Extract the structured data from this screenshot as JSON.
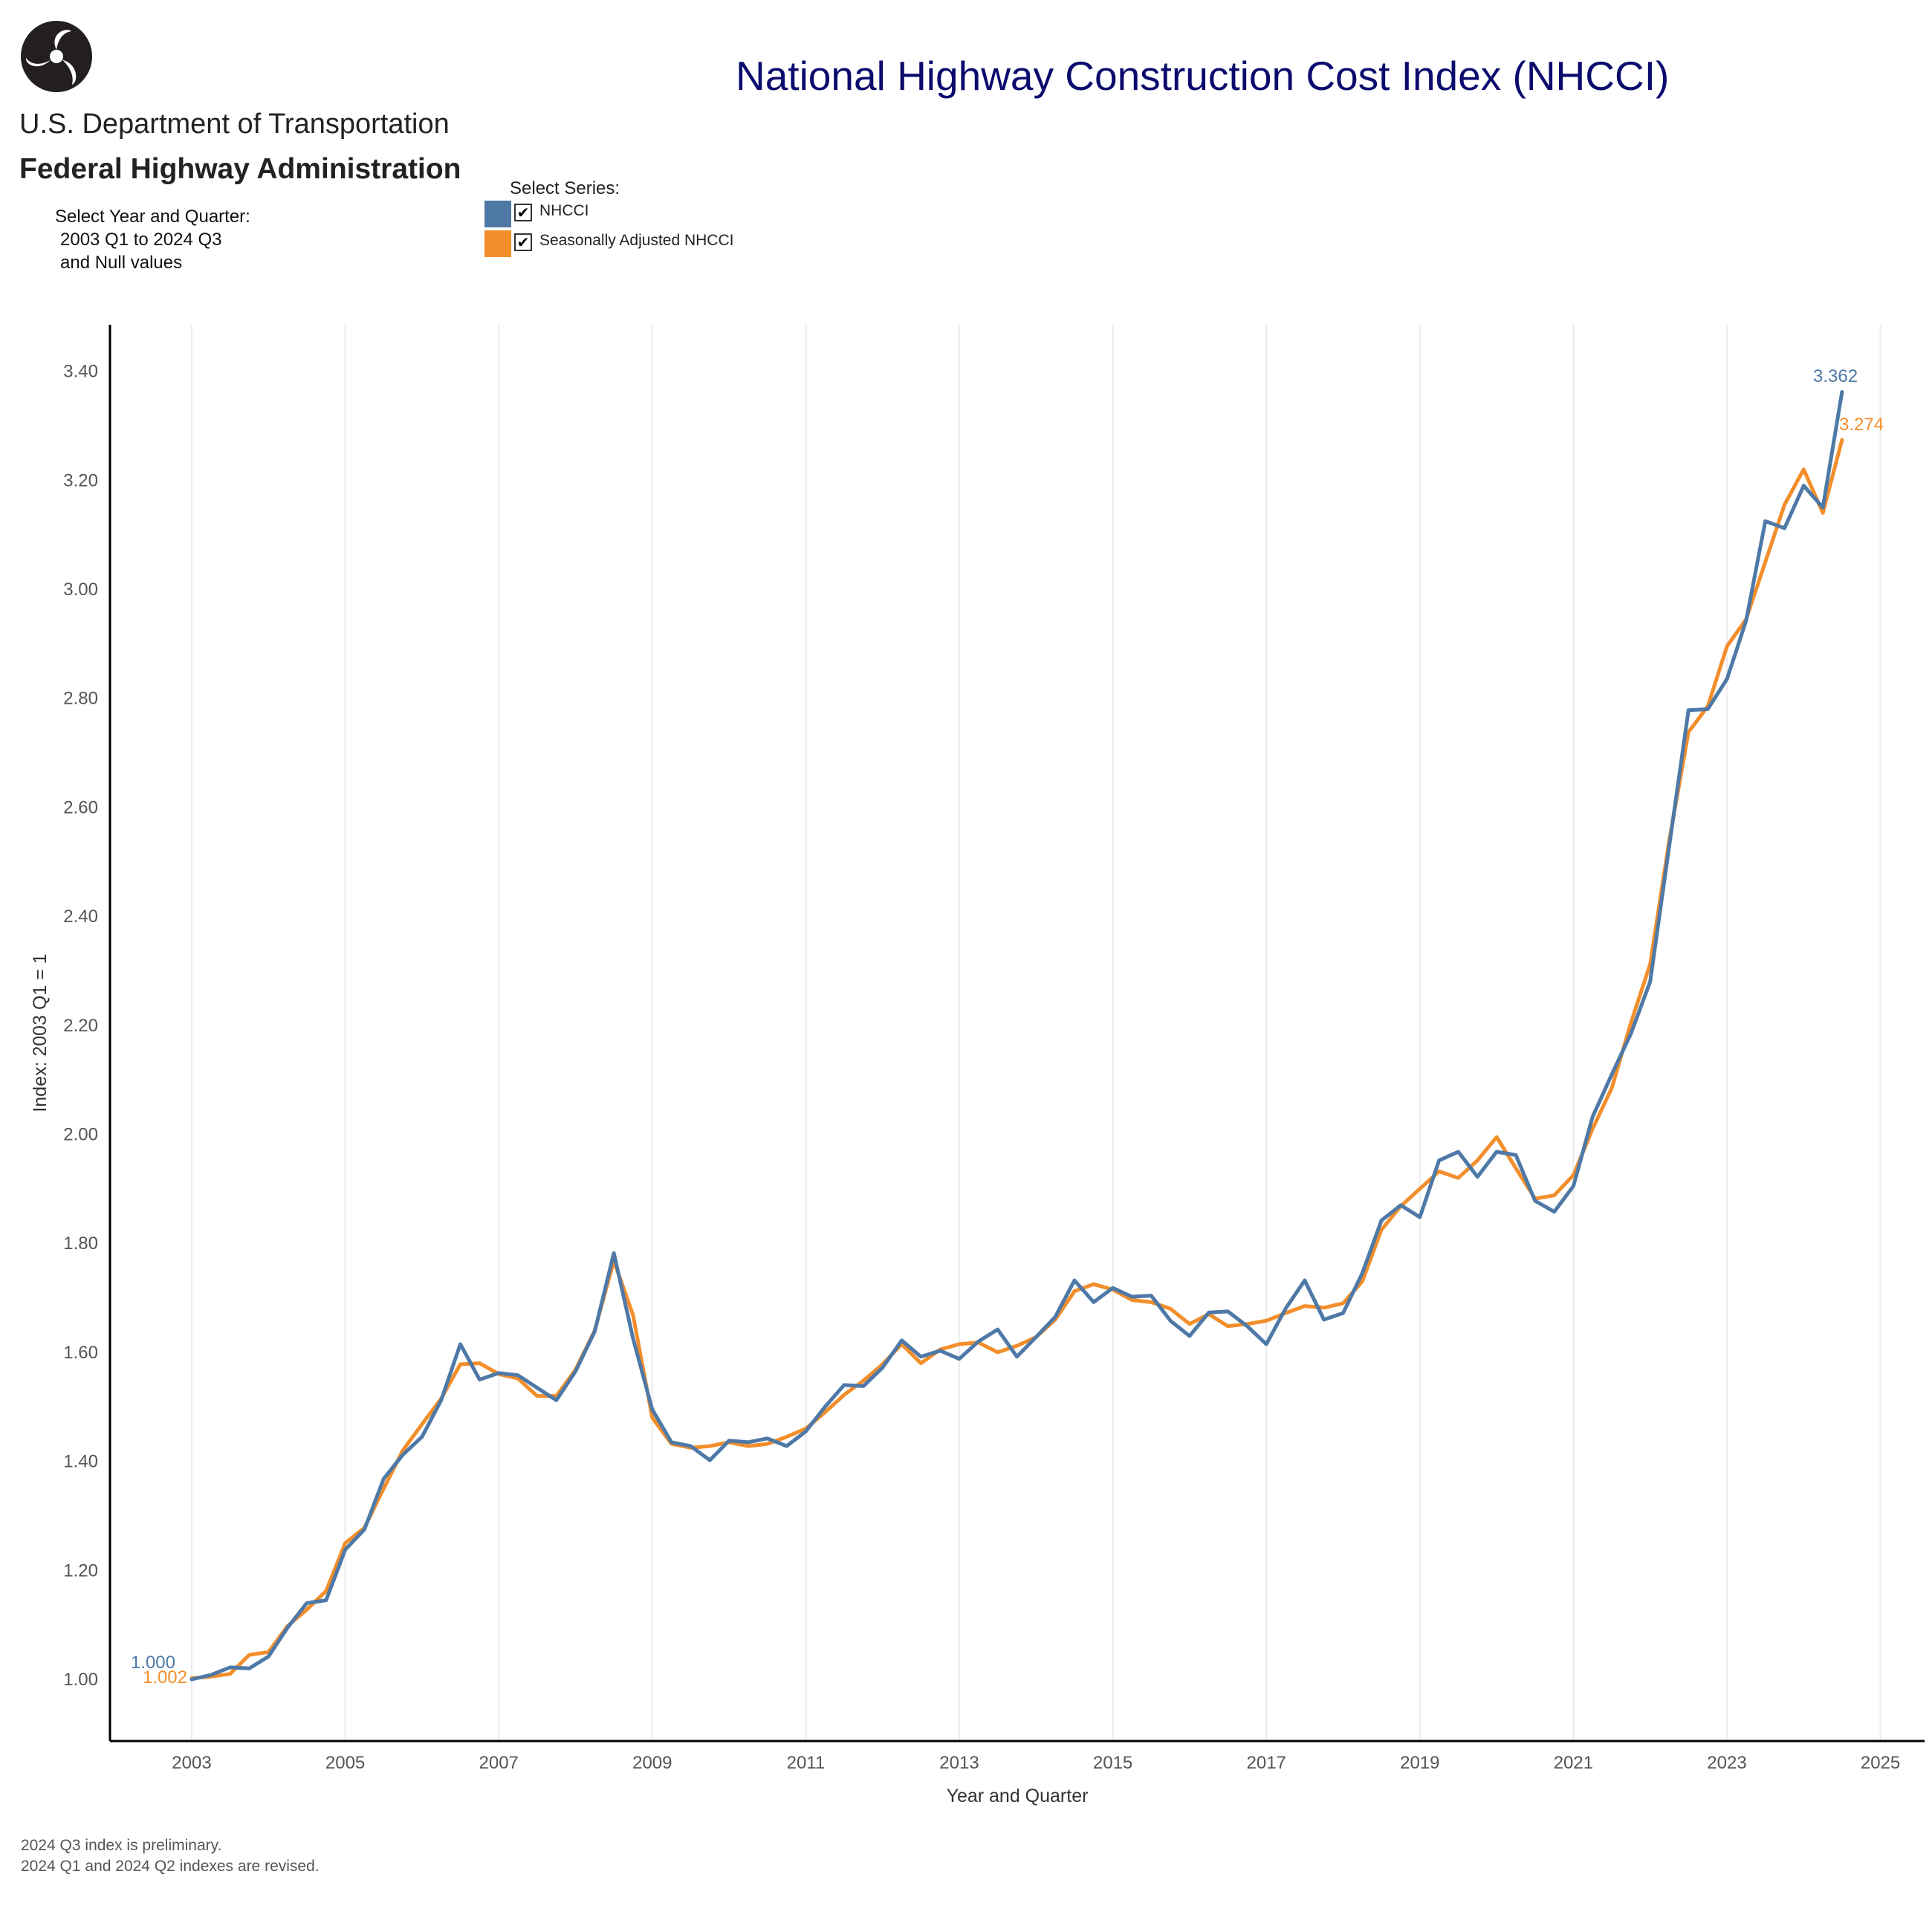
{
  "header": {
    "title": "National Highway Construction Cost Index (NHCCI)",
    "logo": {
      "icon": "dot-tri-circle-logo-icon",
      "line1": "U.S. Department of Transportation",
      "line2": "Federal Highway Administration"
    }
  },
  "filter": {
    "heading": "Select Year and Quarter:",
    "range": "2003 Q1 to 2024 Q3",
    "nulls": "and Null values"
  },
  "series_selector": {
    "heading": "Select Series:",
    "items": [
      {
        "label": "NHCCI",
        "color": "#4e79a7",
        "checked": true
      },
      {
        "label": "Seasonally Adjusted NHCCI",
        "color": "#f28e2b",
        "checked": true
      }
    ]
  },
  "footnotes": [
    "2024 Q3 index is preliminary.",
    "2024 Q1 and 2024 Q2 indexes are revised."
  ],
  "chart_data": {
    "type": "line",
    "title": "National Highway Construction Cost Index (NHCCI)",
    "xlabel": "Year and Quarter",
    "ylabel": "Index: 2003 Q1 = 1",
    "xlim": [
      2002,
      2025.1
    ],
    "ylim": [
      0.89,
      3.49
    ],
    "x_ticks": [
      "2003",
      "2005",
      "2007",
      "2009",
      "2011",
      "2013",
      "2015",
      "2017",
      "2019",
      "2021",
      "2023",
      "2025"
    ],
    "y_ticks": [
      "1.00",
      "1.20",
      "1.40",
      "1.60",
      "1.80",
      "2.00",
      "2.20",
      "2.40",
      "2.60",
      "2.80",
      "3.00",
      "3.20",
      "3.40"
    ],
    "grid": {
      "vertical": true,
      "horizontal": false
    },
    "x_start": "2003 Q1",
    "x_step": "quarter",
    "series": [
      {
        "name": "NHCCI",
        "color": "#4e79a7",
        "values": [
          1.0,
          1.008,
          1.022,
          1.02,
          1.042,
          1.095,
          1.14,
          1.145,
          1.238,
          1.275,
          1.368,
          1.412,
          1.445,
          1.512,
          1.615,
          1.55,
          1.562,
          1.558,
          1.535,
          1.512,
          1.565,
          1.638,
          1.782,
          1.625,
          1.495,
          1.435,
          1.428,
          1.402,
          1.438,
          1.435,
          1.442,
          1.428,
          1.455,
          1.5,
          1.54,
          1.538,
          1.572,
          1.622,
          1.592,
          1.603,
          1.588,
          1.62,
          1.642,
          1.592,
          1.628,
          1.665,
          1.732,
          1.692,
          1.718,
          1.702,
          1.704,
          1.658,
          1.63,
          1.673,
          1.675,
          1.648,
          1.615,
          1.68,
          1.732,
          1.66,
          1.672,
          1.745,
          1.842,
          1.87,
          1.848,
          1.952,
          1.968,
          1.922,
          1.968,
          1.962,
          1.878,
          1.858,
          1.905,
          2.032,
          2.11,
          2.185,
          2.28,
          2.53,
          2.778,
          2.78,
          2.835,
          2.942,
          3.125,
          3.112,
          3.19,
          3.15,
          3.362
        ],
        "end_labels": {
          "first": "1.000",
          "last": "3.362"
        }
      },
      {
        "name": "Seasonally Adjusted NHCCI",
        "color": "#f28e2b",
        "values": [
          1.002,
          1.005,
          1.01,
          1.045,
          1.05,
          1.098,
          1.128,
          1.162,
          1.25,
          1.278,
          1.35,
          1.42,
          1.468,
          1.515,
          1.578,
          1.58,
          1.56,
          1.552,
          1.52,
          1.52,
          1.568,
          1.64,
          1.768,
          1.668,
          1.48,
          1.432,
          1.425,
          1.428,
          1.435,
          1.428,
          1.432,
          1.445,
          1.46,
          1.49,
          1.522,
          1.548,
          1.578,
          1.615,
          1.58,
          1.605,
          1.615,
          1.618,
          1.6,
          1.612,
          1.628,
          1.66,
          1.712,
          1.725,
          1.715,
          1.696,
          1.692,
          1.68,
          1.652,
          1.67,
          1.648,
          1.652,
          1.658,
          1.672,
          1.685,
          1.682,
          1.69,
          1.73,
          1.825,
          1.868,
          1.9,
          1.932,
          1.92,
          1.952,
          1.995,
          1.938,
          1.882,
          1.888,
          1.925,
          2.01,
          2.085,
          2.205,
          2.312,
          2.54,
          2.738,
          2.785,
          2.895,
          2.945,
          3.05,
          3.155,
          3.22,
          3.14,
          3.274
        ],
        "end_labels": {
          "first": "1.002",
          "last": "3.274"
        }
      }
    ]
  }
}
